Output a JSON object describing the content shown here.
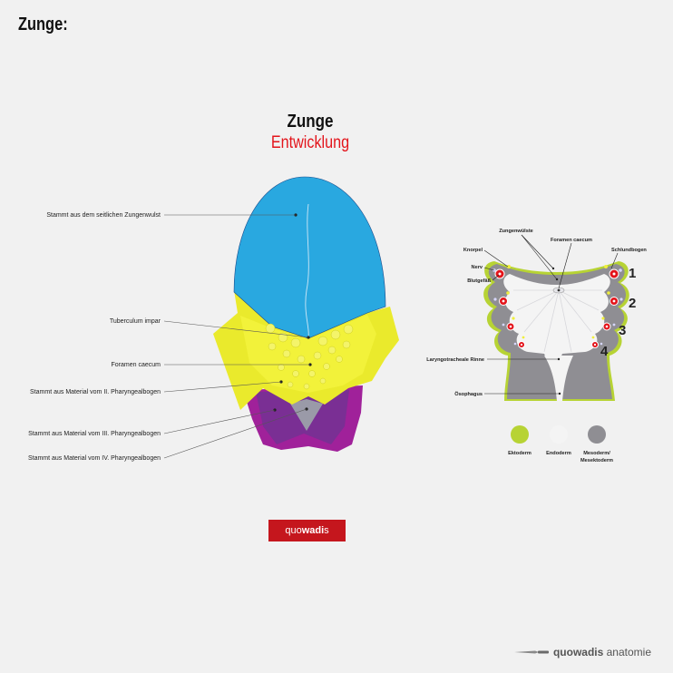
{
  "page": {
    "heading": "Zunge:"
  },
  "title": {
    "main": "Zunge",
    "sub": "Entwicklung"
  },
  "left_labels": [
    "Stammt aus dem seitlichen Zungenwulst",
    "Tuberculum impar",
    "Foramen caecum",
    "Stammt aus Material vom II. Pharyngealbogen",
    "Stammt aus Material vom III. Pharyngealbogen",
    "Stammt aus Material vom IV. Pharyngealbogen"
  ],
  "right_labels": {
    "zungenwuelste": "Zungenwülste",
    "foramen_caecum": "Foramen caecum",
    "knorpel": "Knorpel",
    "schlundbogen": "Schlundbogen",
    "nerv": "Nerv",
    "blutgefaess": "Blutgefäß",
    "laryngotracheale_rinne": "Laryngotracheale Rinne",
    "oesophagus": "Ösophagus",
    "arch_numbers": [
      "1",
      "2",
      "3",
      "4"
    ]
  },
  "legend": [
    {
      "label": "Ektoderm",
      "color": "#b7d334"
    },
    {
      "label": "Endoderm",
      "color": "#f4f4f4"
    },
    {
      "label": "Mesoderm/",
      "label2": "Mesektoderm",
      "color": "#8f8e93"
    }
  ],
  "colors": {
    "blue": "#29a8e0",
    "yellow": "#eaea2c",
    "purple": "#7a2f94",
    "magenta": "#a0219a",
    "lime": "#b7d334",
    "accent_red": "#e3141b",
    "logo_red": "#c5161d"
  },
  "logo": {
    "prefix": "quo",
    "bold": "wadi",
    "suffix": "s"
  },
  "brand": {
    "bold": "quowadis",
    "rest": " anatomie",
    "icon": "scalpel-icon"
  }
}
